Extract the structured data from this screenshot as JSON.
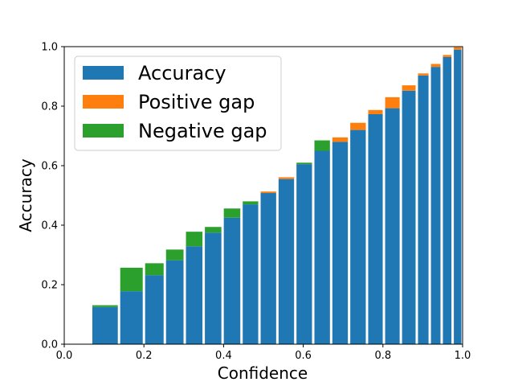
{
  "chart_data": {
    "type": "bar",
    "xlabel": "Confidence",
    "ylabel": "Accuracy",
    "xlim": [
      0.0,
      1.0
    ],
    "ylim": [
      0.0,
      1.0
    ],
    "x_ticks": [
      "0.0",
      "0.2",
      "0.4",
      "0.6",
      "0.8",
      "1.0"
    ],
    "y_ticks": [
      "0.0",
      "0.2",
      "0.4",
      "0.6",
      "0.8",
      "1.0"
    ],
    "legend_position": "top-left",
    "grid": false,
    "colors": {
      "accuracy": "#1f77b4",
      "positive_gap": "#ff7f0e",
      "negative_gap": "#2ca02c"
    },
    "series": [
      {
        "name": "Accuracy",
        "key": "accuracy"
      },
      {
        "name": "Positive gap",
        "key": "positive_gap"
      },
      {
        "name": "Negative gap",
        "key": "negative_gap"
      }
    ],
    "bins": [
      {
        "x": 0.1025,
        "accuracy": 0.125,
        "positive_gap": 0,
        "negative_gap": 0.006
      },
      {
        "x": 0.1725,
        "accuracy": 0.178,
        "positive_gap": 0,
        "negative_gap": 0.079
      },
      {
        "x": 0.2275,
        "accuracy": 0.232,
        "positive_gap": 0,
        "negative_gap": 0.04
      },
      {
        "x": 0.2775,
        "accuracy": 0.282,
        "positive_gap": 0,
        "negative_gap": 0.036
      },
      {
        "x": 0.3275,
        "accuracy": 0.329,
        "positive_gap": 0,
        "negative_gap": 0.049
      },
      {
        "x": 0.3725,
        "accuracy": 0.375,
        "positive_gap": 0,
        "negative_gap": 0.019
      },
      {
        "x": 0.4225,
        "accuracy": 0.425,
        "positive_gap": 0,
        "negative_gap": 0.031
      },
      {
        "x": 0.4675,
        "accuracy": 0.47,
        "positive_gap": 0,
        "negative_gap": 0.01
      },
      {
        "x": 0.5125,
        "accuracy": 0.508,
        "positive_gap": 0.005,
        "negative_gap": 0
      },
      {
        "x": 0.5575,
        "accuracy": 0.555,
        "positive_gap": 0.006,
        "negative_gap": 0
      },
      {
        "x": 0.6025,
        "accuracy": 0.605,
        "positive_gap": 0,
        "negative_gap": 0.005
      },
      {
        "x": 0.6475,
        "accuracy": 0.65,
        "positive_gap": 0,
        "negative_gap": 0.035
      },
      {
        "x": 0.6925,
        "accuracy": 0.68,
        "positive_gap": 0.015,
        "negative_gap": 0
      },
      {
        "x": 0.7375,
        "accuracy": 0.72,
        "positive_gap": 0.024,
        "negative_gap": 0
      },
      {
        "x": 0.7825,
        "accuracy": 0.773,
        "positive_gap": 0.014,
        "negative_gap": 0
      },
      {
        "x": 0.8225,
        "accuracy": 0.793,
        "positive_gap": 0.037,
        "negative_gap": 0
      },
      {
        "x": 0.8675,
        "accuracy": 0.852,
        "positive_gap": 0.018,
        "negative_gap": 0
      },
      {
        "x": 0.9025,
        "accuracy": 0.903,
        "positive_gap": 0.007,
        "negative_gap": 0
      },
      {
        "x": 0.9325,
        "accuracy": 0.932,
        "positive_gap": 0.01,
        "negative_gap": 0
      },
      {
        "x": 0.9625,
        "accuracy": 0.965,
        "positive_gap": 0.007,
        "negative_gap": 0
      },
      {
        "x": 0.9875,
        "accuracy": 0.99,
        "positive_gap": 0.008,
        "negative_gap": 0
      }
    ]
  }
}
